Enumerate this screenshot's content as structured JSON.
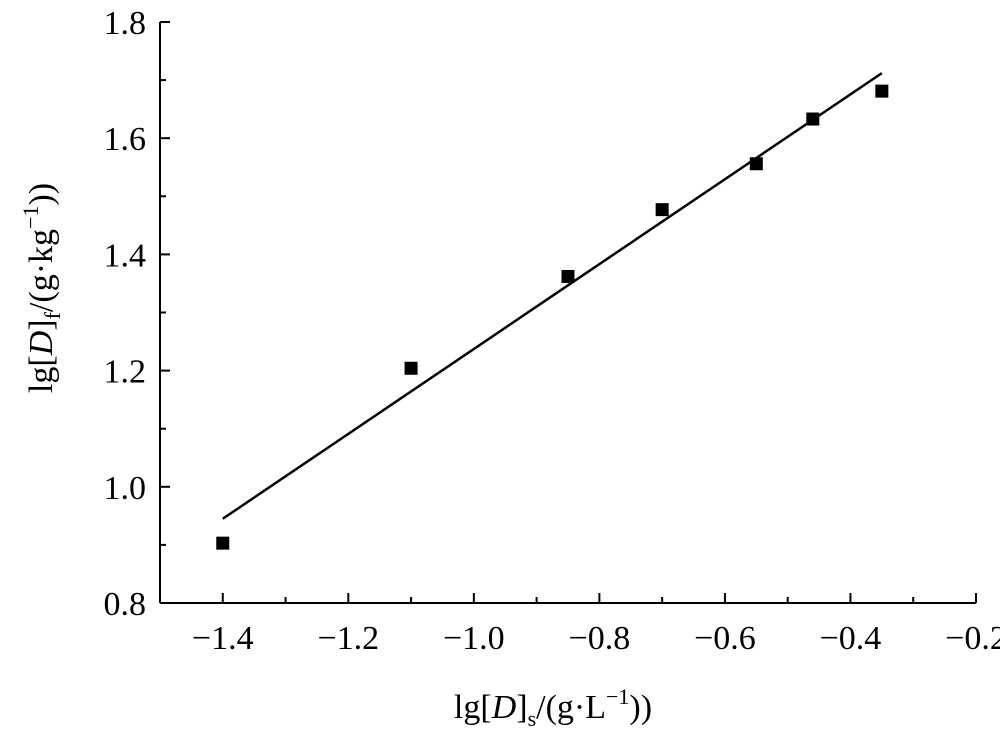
{
  "chart_data": {
    "type": "scatter",
    "title": "",
    "xlabel": {
      "main": "lg[",
      "italic": "D",
      "close": "]",
      "sub": "s",
      "unit": "/(g·L",
      "sup": "−1",
      "end": "))"
    },
    "ylabel": {
      "main": "lg[",
      "italic": "D",
      "close": "]",
      "sub": "f",
      "unit": "/(g·kg",
      "sup": "−1",
      "end": "))"
    },
    "xlim": [
      -1.5,
      -0.2
    ],
    "ylim": [
      0.8,
      1.8
    ],
    "xticks": [
      -1.4,
      -1.2,
      -1.0,
      -0.8,
      -0.6,
      -0.4,
      -0.2
    ],
    "xtick_labels": [
      "−1.4",
      "−1.2",
      "−1.0",
      "−0.8",
      "−0.6",
      "−0.4",
      "−0.2"
    ],
    "yticks": [
      0.8,
      1.0,
      1.2,
      1.4,
      1.6,
      1.8
    ],
    "ytick_labels": [
      "0.8",
      "1.0",
      "1.2",
      "1.4",
      "1.6",
      "1.8"
    ],
    "grid": false,
    "series": [
      {
        "marker": "square",
        "color": "#000000",
        "points": [
          {
            "x": -1.4,
            "y": 0.903
          },
          {
            "x": -1.1,
            "y": 1.204
          },
          {
            "x": -0.85,
            "y": 1.362
          },
          {
            "x": -0.7,
            "y": 1.477
          },
          {
            "x": -0.55,
            "y": 1.556
          },
          {
            "x": -0.46,
            "y": 1.633
          },
          {
            "x": -0.35,
            "y": 1.681
          }
        ]
      }
    ],
    "fit_line": {
      "color": "#000000",
      "x": [
        -1.4,
        -0.35
      ],
      "y": [
        0.945,
        1.712
      ]
    }
  }
}
